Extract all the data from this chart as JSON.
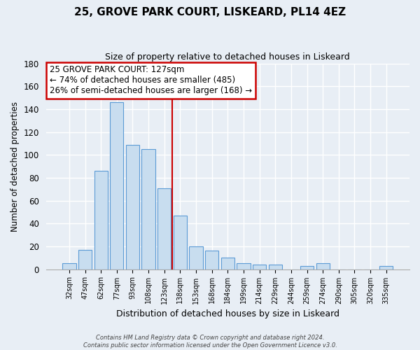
{
  "title": "25, GROVE PARK COURT, LISKEARD, PL14 4EZ",
  "subtitle": "Size of property relative to detached houses in Liskeard",
  "xlabel": "Distribution of detached houses by size in Liskeard",
  "ylabel": "Number of detached properties",
  "bar_labels": [
    "32sqm",
    "47sqm",
    "62sqm",
    "77sqm",
    "93sqm",
    "108sqm",
    "123sqm",
    "138sqm",
    "153sqm",
    "168sqm",
    "184sqm",
    "199sqm",
    "214sqm",
    "229sqm",
    "244sqm",
    "259sqm",
    "274sqm",
    "290sqm",
    "305sqm",
    "320sqm",
    "335sqm"
  ],
  "bar_values": [
    5,
    17,
    86,
    146,
    109,
    105,
    71,
    47,
    20,
    16,
    10,
    5,
    4,
    4,
    0,
    3,
    5,
    0,
    0,
    0,
    3
  ],
  "bar_color": "#c8ddef",
  "bar_edge_color": "#5b9bd5",
  "marker_color": "#cc0000",
  "ylim": [
    0,
    180
  ],
  "yticks": [
    0,
    20,
    40,
    60,
    80,
    100,
    120,
    140,
    160,
    180
  ],
  "annotation_title": "25 GROVE PARK COURT: 127sqm",
  "annotation_line1": "← 74% of detached houses are smaller (485)",
  "annotation_line2": "26% of semi-detached houses are larger (168) →",
  "annotation_box_color": "#ffffff",
  "annotation_box_edge": "#cc0000",
  "footer_line1": "Contains HM Land Registry data © Crown copyright and database right 2024.",
  "footer_line2": "Contains public sector information licensed under the Open Government Licence v3.0.",
  "background_color": "#e8eef5",
  "grid_color": "#ffffff",
  "marker_bar_index": 6
}
